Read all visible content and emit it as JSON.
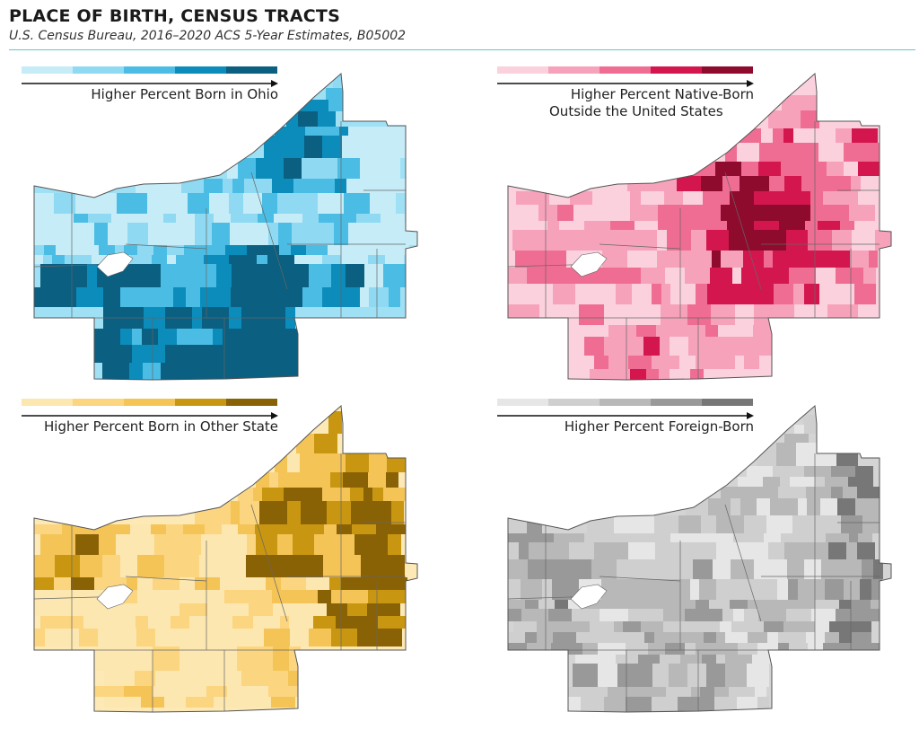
{
  "header": {
    "title": "PLACE OF BIRTH, CENSUS TRACTS",
    "subtitle": "U.S. Census Bureau, 2016–2020 ACS 5-Year Estimates, B05002"
  },
  "panels": [
    {
      "id": "ohio",
      "legend_label_lines": [
        "Higher Percent Born in Ohio"
      ],
      "legend_align": "right",
      "colors": [
        "#c6ecf8",
        "#8fdaf2",
        "#4bbde5",
        "#0b8cbb",
        "#0b5f80"
      ],
      "base_color": "#9fe0f5",
      "dark_region": "southwest-and-central"
    },
    {
      "id": "native-born-outside-us",
      "legend_label_lines": [
        "Higher Percent Native-Born",
        "Outside the United States"
      ],
      "legend_align": "right",
      "colors": [
        "#fbd1de",
        "#f7a2bb",
        "#ef6d92",
        "#d3174e",
        "#8e0b2e"
      ],
      "base_color": "#fbd1de",
      "dark_region": "downtown"
    },
    {
      "id": "other-state",
      "legend_label_lines": [
        "Higher Percent Born in Other State"
      ],
      "legend_align": "right",
      "colors": [
        "#fde7b0",
        "#fbd57f",
        "#f4c457",
        "#c99611",
        "#8a6206"
      ],
      "base_color": "#fde9b5",
      "dark_region": "east"
    },
    {
      "id": "foreign-born",
      "legend_label_lines": [
        "Higher Percent Foreign-Born"
      ],
      "legend_align": "right",
      "colors": [
        "#e6e6e6",
        "#cfcfcf",
        "#b8b8b8",
        "#999999",
        "#777777"
      ],
      "base_color": "#d4d4d4",
      "dark_region": "east-edge"
    }
  ]
}
